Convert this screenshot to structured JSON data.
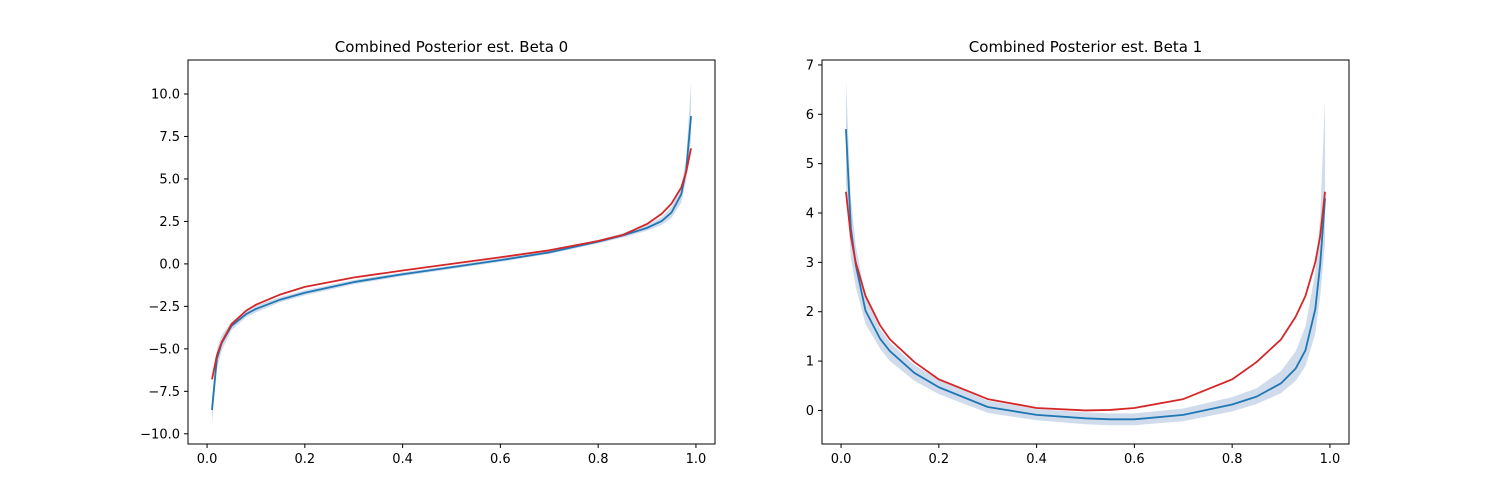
{
  "chart_data": [
    {
      "type": "line",
      "title": "Combined Posterior est. Beta 0",
      "xlabel": "",
      "ylabel": "",
      "xlim": [
        -0.039,
        1.039
      ],
      "ylim": [
        -10.6,
        12.0
      ],
      "xticks": [
        0.0,
        0.2,
        0.4,
        0.6,
        0.8,
        1.0
      ],
      "xtick_labels": [
        "0.0",
        "0.2",
        "0.4",
        "0.6",
        "0.8",
        "1.0"
      ],
      "yticks": [
        -10.0,
        -7.5,
        -5.0,
        -2.5,
        0.0,
        2.5,
        5.0,
        7.5,
        10.0
      ],
      "ytick_labels": [
        "−10.0",
        "−7.5",
        "−5.0",
        "−2.5",
        "0.0",
        "2.5",
        "5.0",
        "7.5",
        "10.0"
      ],
      "grid": false,
      "series": [
        {
          "kind": "band",
          "color": "#b0c4de",
          "x": [
            0.01,
            0.02,
            0.03,
            0.05,
            0.08,
            0.1,
            0.15,
            0.2,
            0.3,
            0.4,
            0.5,
            0.6,
            0.7,
            0.8,
            0.85,
            0.9,
            0.93,
            0.95,
            0.97,
            0.98,
            0.99
          ],
          "lower": [
            -9.4,
            -6.2,
            -5.1,
            -3.9,
            -3.15,
            -2.85,
            -2.25,
            -1.85,
            -1.2,
            -0.72,
            -0.3,
            0.12,
            0.58,
            1.2,
            1.55,
            1.95,
            2.3,
            2.7,
            3.6,
            4.9,
            7.3
          ],
          "upper": [
            -7.9,
            -5.0,
            -4.2,
            -3.4,
            -2.75,
            -2.45,
            -1.95,
            -1.55,
            -0.95,
            -0.5,
            -0.1,
            0.33,
            0.78,
            1.42,
            1.8,
            2.3,
            2.75,
            3.35,
            4.6,
            6.2,
            10.7
          ]
        },
        {
          "kind": "line",
          "color": "#1f77b4",
          "x": [
            0.01,
            0.02,
            0.03,
            0.05,
            0.08,
            0.1,
            0.15,
            0.2,
            0.3,
            0.4,
            0.5,
            0.6,
            0.7,
            0.8,
            0.85,
            0.9,
            0.93,
            0.95,
            0.97,
            0.98,
            0.99
          ],
          "y": [
            -8.6,
            -5.6,
            -4.65,
            -3.65,
            -2.95,
            -2.65,
            -2.1,
            -1.7,
            -1.07,
            -0.61,
            -0.2,
            0.22,
            0.68,
            1.31,
            1.67,
            2.12,
            2.52,
            3.02,
            4.1,
            5.5,
            8.7
          ]
        },
        {
          "kind": "line",
          "color": "#d62728",
          "x": [
            0.01,
            0.02,
            0.03,
            0.05,
            0.08,
            0.1,
            0.15,
            0.2,
            0.3,
            0.4,
            0.5,
            0.6,
            0.7,
            0.8,
            0.85,
            0.9,
            0.93,
            0.95,
            0.97,
            0.98,
            0.99
          ],
          "y": [
            -6.8,
            -5.4,
            -4.6,
            -3.55,
            -2.75,
            -2.4,
            -1.8,
            -1.35,
            -0.8,
            -0.39,
            0.0,
            0.39,
            0.8,
            1.35,
            1.7,
            2.35,
            2.95,
            3.55,
            4.5,
            5.4,
            6.8
          ]
        }
      ]
    },
    {
      "type": "line",
      "title": "Combined Posterior est. Beta 1",
      "xlabel": "",
      "ylabel": "",
      "xlim": [
        -0.039,
        1.039
      ],
      "ylim": [
        -0.68,
        7.1
      ],
      "xticks": [
        0.0,
        0.2,
        0.4,
        0.6,
        0.8,
        1.0
      ],
      "xtick_labels": [
        "0.0",
        "0.2",
        "0.4",
        "0.6",
        "0.8",
        "1.0"
      ],
      "yticks": [
        0,
        1,
        2,
        3,
        4,
        5,
        6,
        7
      ],
      "ytick_labels": [
        "0",
        "1",
        "2",
        "3",
        "4",
        "5",
        "6",
        "7"
      ],
      "grid": false,
      "series": [
        {
          "kind": "band",
          "color": "#b0c4de",
          "x": [
            0.01,
            0.02,
            0.03,
            0.05,
            0.08,
            0.1,
            0.15,
            0.2,
            0.3,
            0.4,
            0.5,
            0.55,
            0.6,
            0.7,
            0.8,
            0.85,
            0.9,
            0.93,
            0.95,
            0.97,
            0.98,
            0.99
          ],
          "lower": [
            4.6,
            3.1,
            2.5,
            1.75,
            1.25,
            1.0,
            0.6,
            0.33,
            -0.05,
            -0.2,
            -0.28,
            -0.3,
            -0.3,
            -0.22,
            -0.02,
            0.13,
            0.35,
            0.6,
            0.9,
            1.55,
            2.3,
            3.4
          ],
          "upper": [
            6.7,
            4.3,
            3.35,
            2.3,
            1.65,
            1.38,
            0.92,
            0.62,
            0.2,
            0.03,
            -0.04,
            -0.06,
            -0.06,
            0.04,
            0.27,
            0.45,
            0.8,
            1.2,
            1.7,
            2.8,
            3.9,
            6.3
          ]
        },
        {
          "kind": "line",
          "color": "#1f77b4",
          "x": [
            0.01,
            0.02,
            0.03,
            0.05,
            0.08,
            0.1,
            0.15,
            0.2,
            0.3,
            0.4,
            0.5,
            0.55,
            0.6,
            0.7,
            0.8,
            0.85,
            0.9,
            0.93,
            0.95,
            0.97,
            0.98,
            0.99
          ],
          "y": [
            5.7,
            3.7,
            2.95,
            2.02,
            1.45,
            1.2,
            0.76,
            0.47,
            0.07,
            -0.09,
            -0.16,
            -0.18,
            -0.18,
            -0.09,
            0.12,
            0.28,
            0.55,
            0.85,
            1.22,
            2.05,
            2.95,
            4.3
          ]
        },
        {
          "kind": "line",
          "color": "#d62728",
          "x": [
            0.01,
            0.02,
            0.03,
            0.05,
            0.08,
            0.1,
            0.15,
            0.2,
            0.3,
            0.4,
            0.5,
            0.55,
            0.6,
            0.7,
            0.8,
            0.85,
            0.9,
            0.93,
            0.95,
            0.97,
            0.98,
            0.99
          ],
          "y": [
            4.43,
            3.53,
            3.0,
            2.32,
            1.72,
            1.44,
            0.98,
            0.63,
            0.23,
            0.05,
            0.0,
            0.01,
            0.05,
            0.23,
            0.63,
            0.98,
            1.44,
            1.9,
            2.32,
            3.0,
            3.53,
            4.43
          ]
        }
      ]
    }
  ]
}
